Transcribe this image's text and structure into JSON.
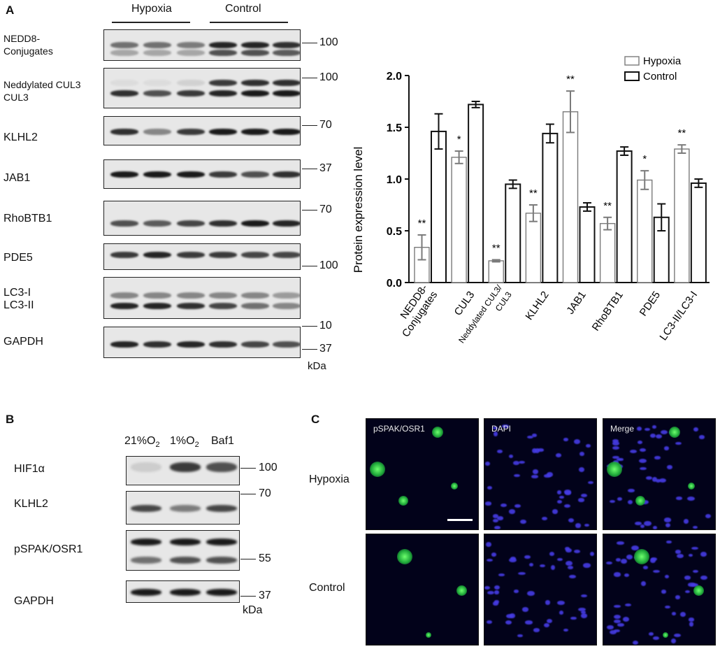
{
  "panelA": {
    "letter": "A",
    "groups": [
      "Hypoxia",
      "Control"
    ],
    "blots": [
      {
        "label": "NEDD8-\nConjugates",
        "mw": [
          "100"
        ]
      },
      {
        "label": "Neddylated CUL3\nCUL3",
        "mw": [
          "100"
        ]
      },
      {
        "label": "KLHL2",
        "mw": [
          "70"
        ]
      },
      {
        "label": "JAB1",
        "mw": [
          "37"
        ]
      },
      {
        "label": "RhoBTB1",
        "mw": [
          "70"
        ]
      },
      {
        "label": "PDE5",
        "mw": [
          "100"
        ]
      },
      {
        "label": "LC3-I\nLC3-II",
        "mw": [
          "10"
        ]
      },
      {
        "label": "GAPDH",
        "mw": [
          "37"
        ]
      }
    ],
    "unit": "kDa"
  },
  "chart_data": {
    "type": "bar",
    "categories": [
      "NEDD8-\nConjugates",
      "CUL3",
      "Neddylated CUL3/\nCUL3",
      "KLHL2",
      "JAB1",
      "RhoBTB1",
      "PDE5",
      "LC3-II/LC3-I"
    ],
    "series": [
      {
        "name": "Hypoxia",
        "values": [
          0.34,
          1.21,
          0.21,
          0.67,
          1.65,
          0.57,
          0.99,
          1.29
        ],
        "errors": [
          0.12,
          0.06,
          0.01,
          0.08,
          0.2,
          0.06,
          0.09,
          0.04
        ],
        "color": "#7a7a7a"
      },
      {
        "name": "Control",
        "values": [
          1.46,
          1.72,
          0.95,
          1.44,
          0.73,
          1.27,
          0.63,
          0.96
        ],
        "errors": [
          0.17,
          0.03,
          0.04,
          0.09,
          0.04,
          0.04,
          0.13,
          0.04
        ],
        "color": "#111111"
      }
    ],
    "significance": [
      "**",
      "*",
      "**",
      "**",
      "**",
      "**",
      "*",
      "**"
    ],
    "ylabel": "Protein expression level",
    "ylim": [
      0,
      2.0
    ],
    "yticks": [
      "0.0",
      "0.5",
      "1.0",
      "1.5",
      "2.0"
    ],
    "legend": "top-right"
  },
  "panelB": {
    "letter": "B",
    "conditions": [
      "21%O",
      "1%O",
      "Baf1"
    ],
    "subscript": "2",
    "blots": [
      {
        "label": "HIF1α",
        "mw": [
          "100"
        ]
      },
      {
        "label": "KLHL2",
        "mw": [
          "70"
        ]
      },
      {
        "label": "pSPAK/OSR1",
        "mw": [
          "55"
        ]
      },
      {
        "label": "GAPDH",
        "mw": [
          "37"
        ]
      }
    ],
    "unit": "kDa"
  },
  "panelC": {
    "letter": "C",
    "columns": [
      "pSPAK/OSR1",
      "DAPI",
      "Merge"
    ],
    "rows": [
      "Hypoxia",
      "Control"
    ]
  }
}
